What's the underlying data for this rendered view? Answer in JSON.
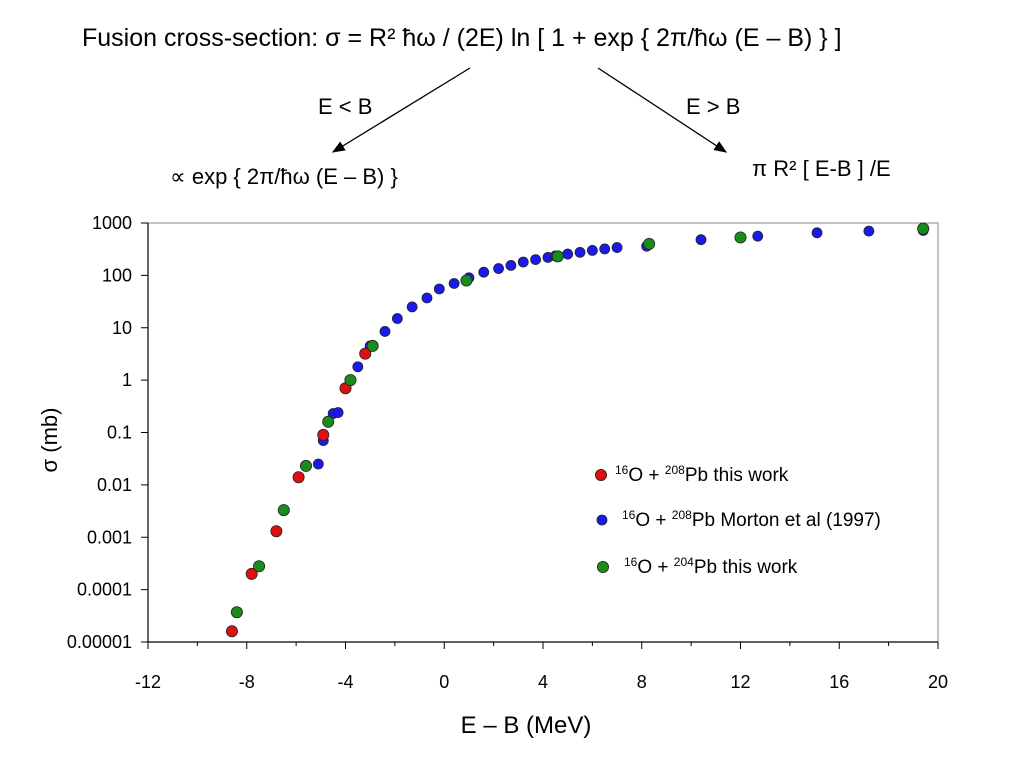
{
  "header": {
    "formula": "Fusion cross-section:  σ  =  R² ħω / (2E) ln [ 1 + exp { 2π/ħω (E – B) } ]",
    "branch_below_label": "E <  B",
    "branch_above_label": "E >  B",
    "branch_below_result": "∝ exp { 2π/ħω (E – B) }",
    "branch_above_result": "π R² [ E-B ] /E"
  },
  "chart_data": {
    "type": "scatter",
    "xlabel": "E – B (MeV)",
    "ylabel": "σ (mb)",
    "xlim": [
      -12,
      20
    ],
    "ylim": [
      1e-05,
      1000
    ],
    "yscale": "log",
    "grid": false,
    "legend_position": "bottom-right",
    "xticks": [
      -12,
      -8,
      -4,
      0,
      4,
      8,
      12,
      16,
      20
    ],
    "xtick_labels": [
      "-12",
      "-8",
      "-4",
      "0",
      "4",
      "8",
      "12",
      "16",
      "20"
    ],
    "yticks": [
      1e-05,
      0.0001,
      0.001,
      0.01,
      0.1,
      1,
      10,
      100,
      1000
    ],
    "ytick_labels": [
      "0.00001",
      "0.0001",
      "0.001",
      "0.01",
      "0.1",
      "1",
      "10",
      "100",
      "1000"
    ],
    "series": [
      {
        "name": "16O + 208Pb Morton et al (1997)",
        "legend_html": "<tspan baseline-shift=\"super\" font-size=\"12\">16</tspan>O + <tspan baseline-shift=\"super\" font-size=\"12\">208</tspan>Pb Morton et al (1997)",
        "color": "#1a1aee",
        "x": [
          -5.1,
          -4.9,
          -4.5,
          -4.3,
          -4.0,
          -3.5,
          -3.0,
          -2.4,
          -1.9,
          -1.3,
          -0.7,
          -0.2,
          0.4,
          1.0,
          1.6,
          2.2,
          2.7,
          3.2,
          3.7,
          4.2,
          4.5,
          5.0,
          5.5,
          6.0,
          6.5,
          7.0,
          8.2,
          10.4,
          12.7,
          15.1,
          17.2,
          19.4
        ],
        "y": [
          0.025,
          0.07,
          0.23,
          0.24,
          0.7,
          1.8,
          4.5,
          8.5,
          15,
          25,
          37,
          55,
          70,
          90,
          115,
          135,
          155,
          180,
          200,
          220,
          235,
          255,
          275,
          300,
          320,
          340,
          360,
          480,
          560,
          650,
          700,
          720
        ]
      },
      {
        "name": "16O + 208Pb this work",
        "legend_html": "<tspan baseline-shift=\"super\" font-size=\"12\">16</tspan>O + <tspan baseline-shift=\"super\" font-size=\"12\">208</tspan>Pb this work",
        "color": "#e01010",
        "x": [
          -8.6,
          -7.8,
          -6.8,
          -5.9,
          -4.9,
          -4.0,
          -3.2
        ],
        "y": [
          1.6e-05,
          0.0002,
          0.0013,
          0.014,
          0.09,
          0.7,
          3.2
        ]
      },
      {
        "name": "16O + 204Pb this work",
        "legend_html": "<tspan baseline-shift=\"super\" font-size=\"12\">16</tspan>O + <tspan baseline-shift=\"super\" font-size=\"12\">204</tspan>Pb this work",
        "color": "#1a8c1a",
        "x": [
          -8.4,
          -7.5,
          -6.5,
          -5.6,
          -4.7,
          -3.8,
          -2.9,
          0.9,
          4.6,
          8.3,
          12.0,
          19.4
        ],
        "y": [
          3.7e-05,
          0.00028,
          0.0033,
          0.023,
          0.16,
          1.0,
          4.5,
          80,
          230,
          400,
          530,
          780
        ]
      }
    ]
  }
}
